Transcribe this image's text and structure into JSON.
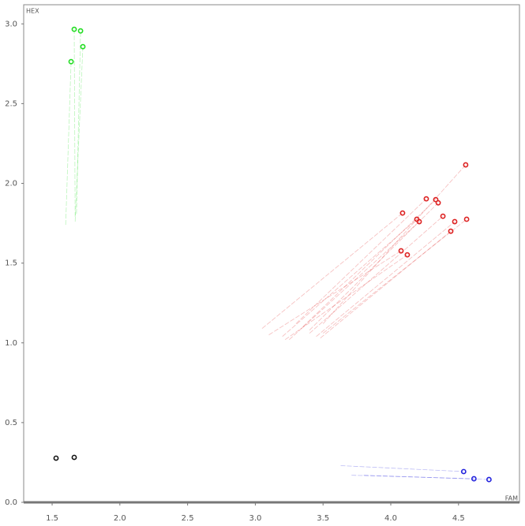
{
  "chart_data": {
    "type": "scatter",
    "x_label": "FAM",
    "y_label": "HEX",
    "xlim": [
      1.29,
      4.95
    ],
    "ylim": [
      0,
      3.12
    ],
    "xticks": [
      1.5,
      {
        "value": 2,
        "label": "2.0"
      },
      2.5,
      {
        "value": 3,
        "label": "3.0"
      },
      3.5,
      {
        "value": 4,
        "label": "4.0"
      },
      4.5
    ],
    "yticks": [
      {
        "value": 0,
        "label": "0.0"
      },
      0.5,
      {
        "value": 1,
        "label": "1.0"
      },
      1.5,
      {
        "value": 2,
        "label": "2.0"
      },
      2.5,
      {
        "value": 3,
        "label": "3.0"
      }
    ],
    "grid": false,
    "series": [
      {
        "color": "#22dd22",
        "x": [
          1.663,
          1.71,
          1.727,
          1.64
        ],
        "y": [
          2.966,
          2.956,
          2.857,
          2.763
        ],
        "trail_x": [
          1.67,
          1.68,
          1.67,
          1.6
        ],
        "trail_y": [
          1.79,
          1.81,
          1.76,
          1.74
        ]
      },
      {
        "color": "#111111",
        "x": [
          1.529,
          1.663
        ],
        "y": [
          0.277,
          0.282
        ]
      },
      {
        "color": "#2222dd",
        "x": [
          4.538,
          4.614,
          4.725
        ],
        "y": [
          0.193,
          0.148,
          0.143
        ],
        "trail_x": [
          3.63,
          3.71,
          3.8
        ],
        "trail_y": [
          0.23,
          0.17,
          0.17
        ]
      },
      {
        "color": "#dd2222",
        "x": [
          4.553,
          4.262,
          4.332,
          4.35,
          4.087,
          4.192,
          4.21,
          4.385,
          4.472,
          4.56,
          4.443,
          4.076,
          4.122
        ],
        "y": [
          2.116,
          1.903,
          1.898,
          1.878,
          1.814,
          1.775,
          1.76,
          1.794,
          1.76,
          1.775,
          1.7,
          1.577,
          1.552
        ],
        "trail_x": [
          3.5,
          3.3,
          3.35,
          3.4,
          3.05,
          3.2,
          3.25,
          3.4,
          3.45,
          3.5,
          3.48,
          3.1,
          3.22
        ],
        "trail_y": [
          1.12,
          1.12,
          1.1,
          1.08,
          1.09,
          1.04,
          1.02,
          1.06,
          1.04,
          1.06,
          1.03,
          1.05,
          1.02
        ]
      }
    ]
  }
}
